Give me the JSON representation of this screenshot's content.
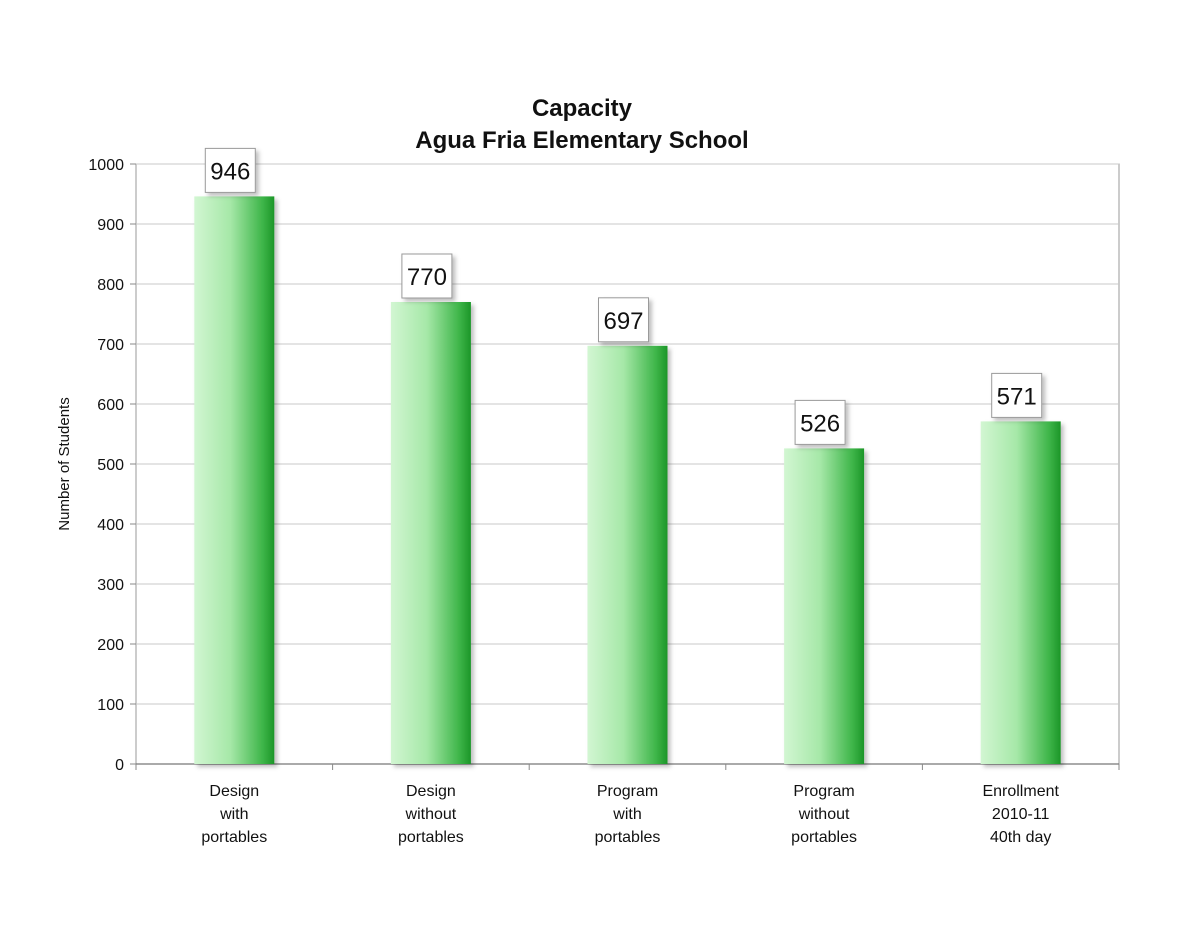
{
  "chart_data": {
    "type": "bar",
    "title": [
      "Capacity",
      "Agua Fria Elementary School"
    ],
    "xlabel": "",
    "ylabel": "Number of Students",
    "ylim": [
      0,
      1000
    ],
    "yticks": [
      0,
      100,
      200,
      300,
      400,
      500,
      600,
      700,
      800,
      900,
      1000
    ],
    "grid": true,
    "legend": "none",
    "categories": [
      [
        "Design",
        "with",
        "portables"
      ],
      [
        "Design",
        "without",
        "portables"
      ],
      [
        "Program",
        "with",
        "portables"
      ],
      [
        "Program",
        "without",
        "portables"
      ],
      [
        "Enrollment",
        "2010-11",
        "40th day"
      ]
    ],
    "values": [
      946,
      770,
      697,
      526,
      571
    ],
    "data_labels": [
      "946",
      "770",
      "697",
      "526",
      "571"
    ],
    "colors": {
      "bar_light": "#cdf5cd",
      "bar_mid": "#7fd884",
      "bar_dark": "#1e9a2a",
      "grid": "#c8c8c8",
      "axis": "#888888"
    }
  }
}
